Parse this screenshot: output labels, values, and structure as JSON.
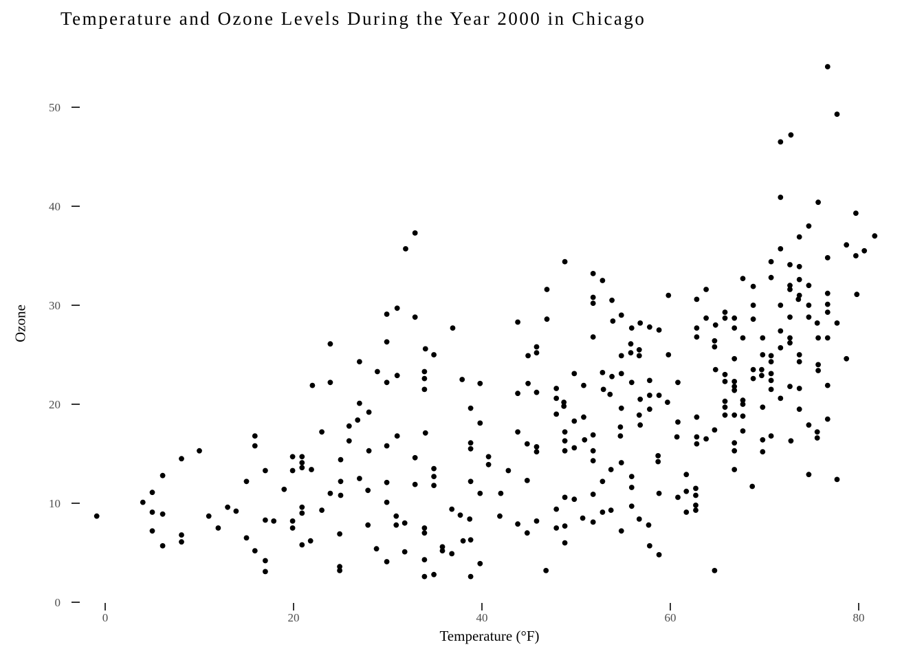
{
  "chart_data": {
    "type": "scatter",
    "title": "Temperature and Ozone Levels During the Year 2000 in Chicago",
    "xlabel": "Temperature (°F)",
    "ylabel": "Ozone",
    "x_ticks": [
      0,
      20,
      40,
      60,
      80
    ],
    "y_ticks": [
      0,
      10,
      20,
      30,
      40,
      50
    ],
    "xlim": [
      -4,
      85
    ],
    "ylim": [
      0,
      57
    ],
    "grid": false,
    "legend": false,
    "point_color": "#000000",
    "axis_text_color": "#4d4d4d",
    "tick_color": "#333333",
    "background_color": "#ffffff",
    "points": [
      [
        76.7,
        54.1
      ],
      [
        77.7,
        49.3
      ],
      [
        72.8,
        47.2
      ],
      [
        71.7,
        46.5
      ],
      [
        71.7,
        40.9
      ],
      [
        75.7,
        40.4
      ],
      [
        79.7,
        39.3
      ],
      [
        74.7,
        38.0
      ],
      [
        73.7,
        36.9
      ],
      [
        81.7,
        37.0
      ],
      [
        32.9,
        37.3
      ],
      [
        31.9,
        35.7
      ],
      [
        31.0,
        29.7
      ],
      [
        29.9,
        29.1
      ],
      [
        32.9,
        28.8
      ],
      [
        36.9,
        27.7
      ],
      [
        29.9,
        26.3
      ],
      [
        23.9,
        26.1
      ],
      [
        34.0,
        25.6
      ],
      [
        34.9,
        25.0
      ],
      [
        27.0,
        24.3
      ],
      [
        28.9,
        23.3
      ],
      [
        33.9,
        23.3
      ],
      [
        33.9,
        22.6
      ],
      [
        31.0,
        22.9
      ],
      [
        29.9,
        22.2
      ],
      [
        37.9,
        22.5
      ],
      [
        39.8,
        22.1
      ],
      [
        22.0,
        21.9
      ],
      [
        23.9,
        22.2
      ],
      [
        33.9,
        21.5
      ],
      [
        27.0,
        20.1
      ],
      [
        28.0,
        19.2
      ],
      [
        38.8,
        19.6
      ],
      [
        48.8,
        34.4
      ],
      [
        51.8,
        33.2
      ],
      [
        52.8,
        32.5
      ],
      [
        46.9,
        31.6
      ],
      [
        51.8,
        30.8
      ],
      [
        51.8,
        30.2
      ],
      [
        53.8,
        30.5
      ],
      [
        59.8,
        31.0
      ],
      [
        54.8,
        29.0
      ],
      [
        53.9,
        28.4
      ],
      [
        43.8,
        28.3
      ],
      [
        46.9,
        28.6
      ],
      [
        55.9,
        27.7
      ],
      [
        56.8,
        28.2
      ],
      [
        57.8,
        27.8
      ],
      [
        58.8,
        27.5
      ],
      [
        51.8,
        26.8
      ],
      [
        55.8,
        26.1
      ],
      [
        55.8,
        25.2
      ],
      [
        56.7,
        25.5
      ],
      [
        56.7,
        24.9
      ],
      [
        54.8,
        24.9
      ],
      [
        59.8,
        25.0
      ],
      [
        45.8,
        25.8
      ],
      [
        45.8,
        25.2
      ],
      [
        44.9,
        24.9
      ],
      [
        52.8,
        23.2
      ],
      [
        53.8,
        22.8
      ],
      [
        54.8,
        23.1
      ],
      [
        49.8,
        23.1
      ],
      [
        50.8,
        21.9
      ],
      [
        55.9,
        22.2
      ],
      [
        57.8,
        22.4
      ],
      [
        60.8,
        22.2
      ],
      [
        44.9,
        22.1
      ],
      [
        43.8,
        21.1
      ],
      [
        45.8,
        21.2
      ],
      [
        47.9,
        21.6
      ],
      [
        47.9,
        20.6
      ],
      [
        52.9,
        21.5
      ],
      [
        53.6,
        21.0
      ],
      [
        56.8,
        20.5
      ],
      [
        57.8,
        20.9
      ],
      [
        58.8,
        20.9
      ],
      [
        59.7,
        20.2
      ],
      [
        48.7,
        20.2
      ],
      [
        48.7,
        19.8
      ],
      [
        54.8,
        19.6
      ],
      [
        56.7,
        18.9
      ],
      [
        57.8,
        19.5
      ],
      [
        47.9,
        19.0
      ],
      [
        50.8,
        18.7
      ],
      [
        71.7,
        35.7
      ],
      [
        78.7,
        36.1
      ],
      [
        80.6,
        35.5
      ],
      [
        79.7,
        35.0
      ],
      [
        76.7,
        34.8
      ],
      [
        70.7,
        34.4
      ],
      [
        72.7,
        34.1
      ],
      [
        73.7,
        33.9
      ],
      [
        70.7,
        32.8
      ],
      [
        67.7,
        32.7
      ],
      [
        73.7,
        32.6
      ],
      [
        72.7,
        32.0
      ],
      [
        72.7,
        31.6
      ],
      [
        68.8,
        31.9
      ],
      [
        63.8,
        31.6
      ],
      [
        74.7,
        32.0
      ],
      [
        62.8,
        30.6
      ],
      [
        76.7,
        31.2
      ],
      [
        79.8,
        31.1
      ],
      [
        73.7,
        31.0
      ],
      [
        73.6,
        30.6
      ],
      [
        68.8,
        30.0
      ],
      [
        71.7,
        30.0
      ],
      [
        74.7,
        30.0
      ],
      [
        76.7,
        30.1
      ],
      [
        76.7,
        29.3
      ],
      [
        65.8,
        29.3
      ],
      [
        65.8,
        28.7
      ],
      [
        63.8,
        28.7
      ],
      [
        64.8,
        28.0
      ],
      [
        66.8,
        28.7
      ],
      [
        68.8,
        28.6
      ],
      [
        62.8,
        27.7
      ],
      [
        62.8,
        26.8
      ],
      [
        66.8,
        27.7
      ],
      [
        74.7,
        28.8
      ],
      [
        72.7,
        28.8
      ],
      [
        75.6,
        28.2
      ],
      [
        77.7,
        28.2
      ],
      [
        76.7,
        26.7
      ],
      [
        75.7,
        26.7
      ],
      [
        72.7,
        26.7
      ],
      [
        72.7,
        26.2
      ],
      [
        71.7,
        25.7
      ],
      [
        71.7,
        27.4
      ],
      [
        67.7,
        26.7
      ],
      [
        64.7,
        26.4
      ],
      [
        64.7,
        25.8
      ],
      [
        69.8,
        26.7
      ],
      [
        66.8,
        24.6
      ],
      [
        69.8,
        25.0
      ],
      [
        70.7,
        24.9
      ],
      [
        70.7,
        24.3
      ],
      [
        73.7,
        25.0
      ],
      [
        73.7,
        24.3
      ],
      [
        78.7,
        24.6
      ],
      [
        75.7,
        24.0
      ],
      [
        75.7,
        23.4
      ],
      [
        64.8,
        23.5
      ],
      [
        68.8,
        23.5
      ],
      [
        68.8,
        22.6
      ],
      [
        69.7,
        23.5
      ],
      [
        69.7,
        22.9
      ],
      [
        70.7,
        23.1
      ],
      [
        70.7,
        22.4
      ],
      [
        65.8,
        23.0
      ],
      [
        65.8,
        22.3
      ],
      [
        66.8,
        22.3
      ],
      [
        66.8,
        21.8
      ],
      [
        66.8,
        21.4
      ],
      [
        70.7,
        21.5
      ],
      [
        72.7,
        21.8
      ],
      [
        73.7,
        21.6
      ],
      [
        76.7,
        21.9
      ],
      [
        71.7,
        20.6
      ],
      [
        65.8,
        20.3
      ],
      [
        67.7,
        20.4
      ],
      [
        67.7,
        20.0
      ],
      [
        65.8,
        19.7
      ],
      [
        69.8,
        19.7
      ],
      [
        73.7,
        19.5
      ],
      [
        65.8,
        18.9
      ],
      [
        66.8,
        18.9
      ],
      [
        62.8,
        18.7
      ],
      [
        67.7,
        18.8
      ],
      [
        15.9,
        16.8
      ],
      [
        15.9,
        15.8
      ],
      [
        10.0,
        15.3
      ],
      [
        8.1,
        14.5
      ],
      [
        6.1,
        12.8
      ],
      [
        17.0,
        13.3
      ],
      [
        15.0,
        12.2
      ],
      [
        19.0,
        11.4
      ],
      [
        5.0,
        11.1
      ],
      [
        4.0,
        10.1
      ],
      [
        5.0,
        9.1
      ],
      [
        6.1,
        8.9
      ],
      [
        -0.9,
        8.7
      ],
      [
        11.0,
        8.7
      ],
      [
        13.0,
        9.6
      ],
      [
        13.9,
        9.2
      ],
      [
        12.0,
        7.5
      ],
      [
        17.0,
        8.3
      ],
      [
        17.9,
        8.2
      ],
      [
        5.0,
        7.2
      ],
      [
        8.1,
        6.8
      ],
      [
        8.1,
        6.1
      ],
      [
        6.1,
        5.7
      ],
      [
        15.0,
        6.5
      ],
      [
        15.9,
        5.2
      ],
      [
        17.0,
        4.2
      ],
      [
        17.0,
        3.1
      ],
      [
        26.8,
        18.4
      ],
      [
        25.9,
        17.8
      ],
      [
        23.0,
        17.2
      ],
      [
        25.9,
        16.3
      ],
      [
        31.0,
        16.8
      ],
      [
        34.0,
        17.1
      ],
      [
        39.8,
        18.1
      ],
      [
        28.0,
        15.3
      ],
      [
        29.9,
        15.8
      ],
      [
        19.9,
        14.7
      ],
      [
        20.9,
        14.7
      ],
      [
        20.9,
        14.1
      ],
      [
        20.9,
        13.6
      ],
      [
        19.9,
        13.3
      ],
      [
        21.9,
        13.4
      ],
      [
        25.0,
        14.4
      ],
      [
        32.9,
        14.6
      ],
      [
        38.8,
        16.1
      ],
      [
        38.8,
        15.5
      ],
      [
        34.9,
        13.5
      ],
      [
        34.9,
        12.7
      ],
      [
        34.9,
        11.8
      ],
      [
        32.9,
        11.9
      ],
      [
        27.0,
        12.5
      ],
      [
        25.0,
        12.2
      ],
      [
        29.9,
        12.1
      ],
      [
        27.9,
        11.3
      ],
      [
        23.9,
        11.0
      ],
      [
        25.0,
        10.8
      ],
      [
        38.8,
        12.2
      ],
      [
        39.8,
        11.0
      ],
      [
        29.9,
        10.1
      ],
      [
        20.9,
        9.6
      ],
      [
        20.9,
        9.0
      ],
      [
        23.0,
        9.3
      ],
      [
        19.9,
        8.2
      ],
      [
        19.9,
        7.5
      ],
      [
        30.9,
        8.7
      ],
      [
        30.9,
        7.8
      ],
      [
        31.8,
        8.0
      ],
      [
        27.9,
        7.8
      ],
      [
        33.9,
        7.5
      ],
      [
        33.9,
        7.0
      ],
      [
        36.8,
        9.4
      ],
      [
        37.7,
        8.8
      ],
      [
        38.7,
        8.4
      ],
      [
        24.9,
        6.9
      ],
      [
        21.8,
        6.2
      ],
      [
        20.9,
        5.8
      ],
      [
        28.8,
        5.4
      ],
      [
        31.8,
        5.1
      ],
      [
        38.8,
        6.3
      ],
      [
        38.0,
        6.2
      ],
      [
        35.8,
        5.6
      ],
      [
        35.8,
        5.2
      ],
      [
        36.8,
        4.9
      ],
      [
        29.9,
        4.1
      ],
      [
        33.9,
        4.3
      ],
      [
        24.9,
        3.6
      ],
      [
        24.9,
        3.2
      ],
      [
        39.8,
        3.9
      ],
      [
        33.9,
        2.6
      ],
      [
        34.9,
        2.8
      ],
      [
        38.8,
        2.6
      ],
      [
        49.8,
        18.3
      ],
      [
        43.8,
        17.2
      ],
      [
        48.8,
        17.2
      ],
      [
        48.8,
        16.3
      ],
      [
        48.8,
        15.3
      ],
      [
        51.8,
        16.9
      ],
      [
        50.9,
        16.4
      ],
      [
        44.8,
        16.0
      ],
      [
        45.8,
        15.7
      ],
      [
        45.8,
        15.2
      ],
      [
        49.8,
        15.6
      ],
      [
        51.8,
        15.3
      ],
      [
        54.7,
        17.7
      ],
      [
        54.7,
        16.8
      ],
      [
        56.8,
        17.9
      ],
      [
        60.8,
        18.2
      ],
      [
        60.7,
        16.7
      ],
      [
        58.7,
        14.8
      ],
      [
        58.7,
        14.2
      ],
      [
        40.7,
        14.7
      ],
      [
        40.7,
        13.9
      ],
      [
        51.8,
        14.3
      ],
      [
        54.8,
        14.1
      ],
      [
        42.8,
        13.3
      ],
      [
        53.7,
        13.4
      ],
      [
        44.8,
        12.3
      ],
      [
        55.9,
        12.7
      ],
      [
        55.9,
        11.6
      ],
      [
        52.8,
        12.2
      ],
      [
        58.8,
        11.0
      ],
      [
        42.0,
        11.0
      ],
      [
        48.8,
        10.6
      ],
      [
        49.8,
        10.4
      ],
      [
        51.8,
        10.9
      ],
      [
        60.8,
        10.6
      ],
      [
        47.9,
        9.4
      ],
      [
        52.8,
        9.1
      ],
      [
        53.7,
        9.3
      ],
      [
        55.9,
        9.7
      ],
      [
        50.7,
        8.5
      ],
      [
        51.8,
        8.1
      ],
      [
        41.9,
        8.7
      ],
      [
        43.8,
        7.9
      ],
      [
        45.8,
        8.2
      ],
      [
        47.9,
        7.5
      ],
      [
        48.8,
        7.7
      ],
      [
        44.8,
        7.0
      ],
      [
        54.8,
        7.2
      ],
      [
        56.7,
        8.4
      ],
      [
        57.7,
        7.8
      ],
      [
        48.8,
        6.0
      ],
      [
        57.8,
        5.7
      ],
      [
        58.8,
        4.8
      ],
      [
        46.8,
        3.2
      ],
      [
        76.7,
        18.5
      ],
      [
        74.7,
        17.9
      ],
      [
        64.7,
        17.4
      ],
      [
        67.7,
        17.3
      ],
      [
        62.8,
        16.7
      ],
      [
        62.8,
        16.0
      ],
      [
        63.8,
        16.5
      ],
      [
        66.8,
        16.1
      ],
      [
        66.8,
        15.3
      ],
      [
        69.8,
        16.4
      ],
      [
        70.7,
        16.8
      ],
      [
        72.8,
        16.3
      ],
      [
        69.8,
        15.2
      ],
      [
        75.6,
        17.2
      ],
      [
        75.6,
        16.6
      ],
      [
        66.8,
        13.4
      ],
      [
        74.7,
        12.9
      ],
      [
        77.7,
        12.4
      ],
      [
        68.7,
        11.7
      ],
      [
        62.7,
        11.5
      ],
      [
        62.7,
        10.8
      ],
      [
        62.7,
        9.8
      ],
      [
        62.7,
        9.3
      ],
      [
        64.7,
        3.2
      ],
      [
        61.7,
        12.9
      ],
      [
        61.7,
        11.2
      ],
      [
        61.7,
        9.1
      ]
    ]
  }
}
